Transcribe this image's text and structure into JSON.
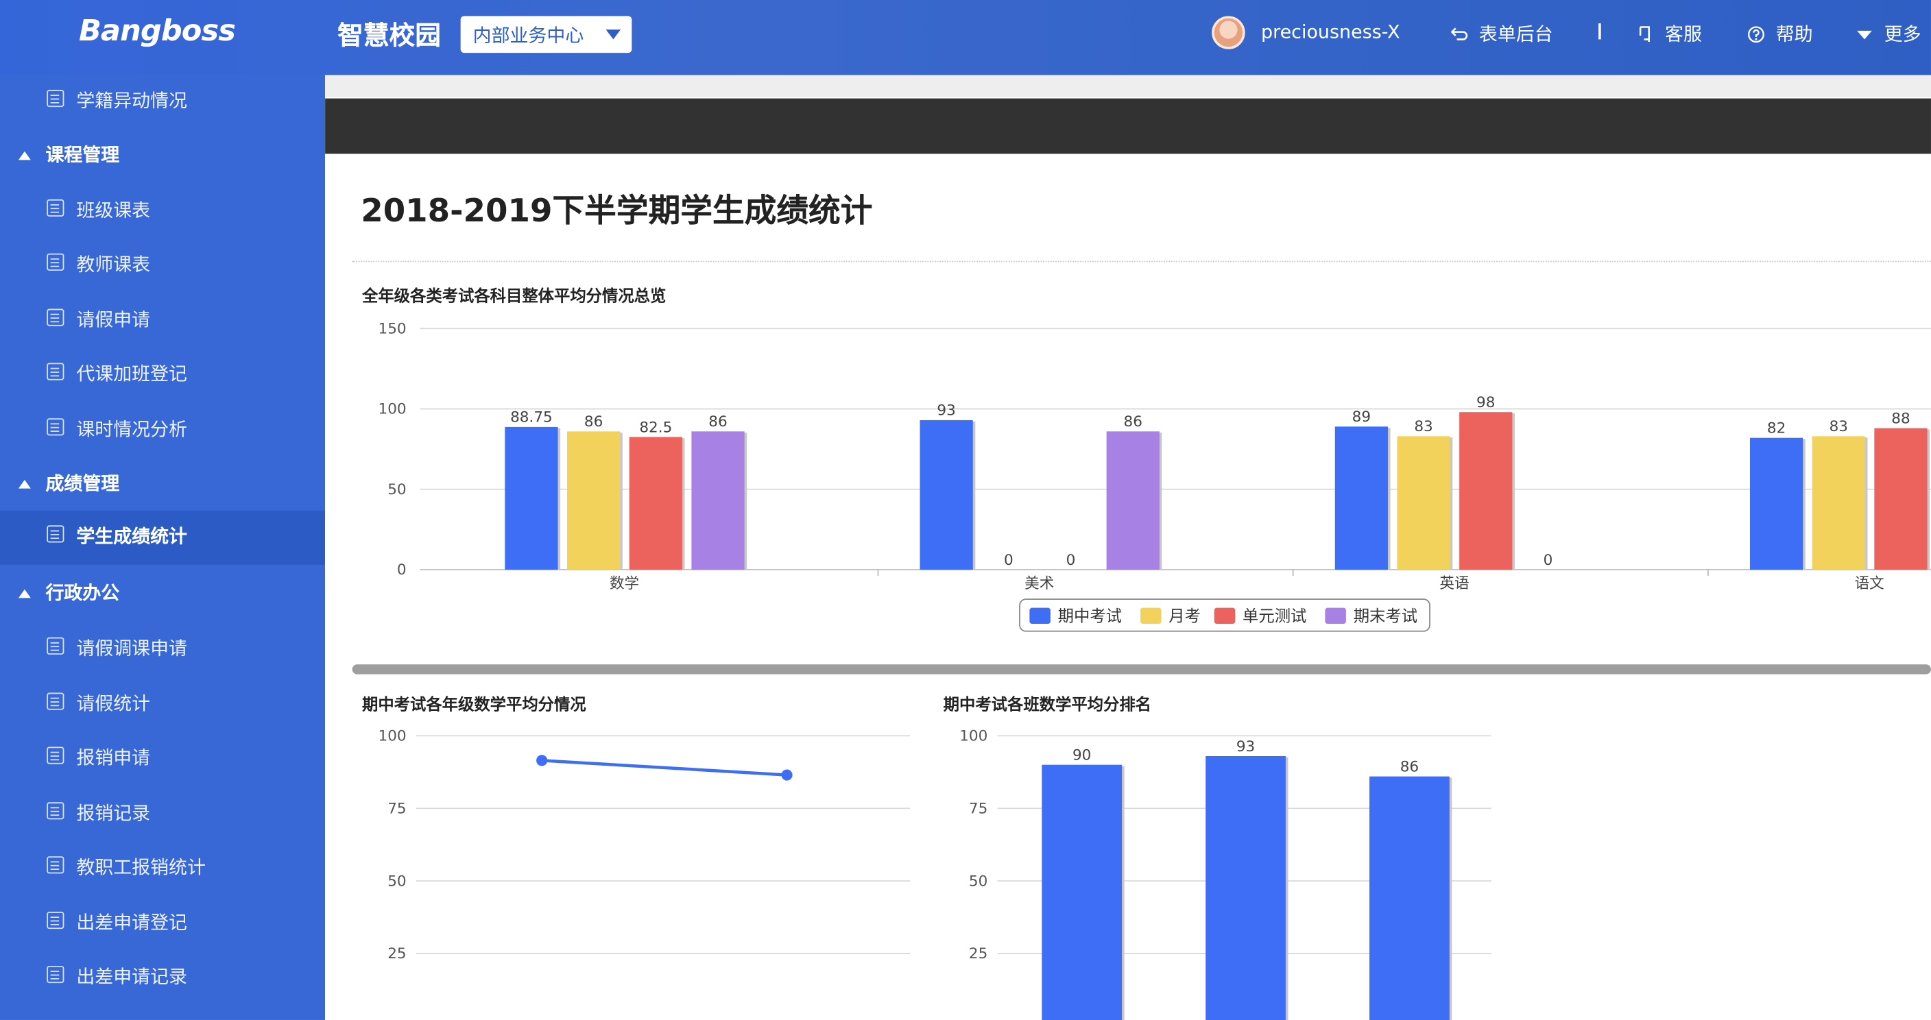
{
  "header": {
    "logo": "Bangboss",
    "app_title": "智慧校园",
    "dept_select": "内部业务中心",
    "username": "preciousness-X",
    "nav": [
      {
        "label": "表单后台",
        "icon": "return-icon"
      },
      {
        "label": "客服",
        "icon": "customer-service-icon"
      },
      {
        "label": "帮助",
        "icon": "help-icon"
      },
      {
        "label": "更多",
        "icon": "caret-down-icon"
      }
    ]
  },
  "sidebar": {
    "items": [
      {
        "type": "item",
        "label": "学籍异动情况",
        "icon": "person-card-icon"
      },
      {
        "type": "group",
        "label": "课程管理"
      },
      {
        "type": "item",
        "label": "班级课表",
        "icon": "calendar-icon"
      },
      {
        "type": "item",
        "label": "教师课表",
        "icon": "calendar-icon"
      },
      {
        "type": "item",
        "label": "请假申请",
        "icon": "printer-icon"
      },
      {
        "type": "item",
        "label": "代课加班登记",
        "icon": "form-icon"
      },
      {
        "type": "item",
        "label": "课时情况分析",
        "icon": "bar-chart-icon"
      },
      {
        "type": "group",
        "label": "成绩管理"
      },
      {
        "type": "item",
        "label": "学生成绩统计",
        "icon": "bar-chart-icon",
        "active": true
      },
      {
        "type": "group",
        "label": "行政办公"
      },
      {
        "type": "item",
        "label": "请假调课申请",
        "icon": "form-icon"
      },
      {
        "type": "item",
        "label": "请假统计",
        "icon": "bar-chart-icon"
      },
      {
        "type": "item",
        "label": "报销申请",
        "icon": "receipt-icon"
      },
      {
        "type": "item",
        "label": "报销记录",
        "icon": "calendar-icon"
      },
      {
        "type": "item",
        "label": "教职工报销统计",
        "icon": "bar-chart-icon"
      },
      {
        "type": "item",
        "label": "出差申请登记",
        "icon": "form-icon"
      },
      {
        "type": "item",
        "label": "出差申请记录",
        "icon": "bar-chart-icon"
      }
    ]
  },
  "main": {
    "page_title": "2018-2019下半学期学生成绩统计"
  },
  "colors": {
    "blue": "#3d6ef5",
    "yellow": "#f3d25b",
    "red": "#ec625c",
    "purple": "#a781e3"
  },
  "chart_data": [
    {
      "type": "bar",
      "title": "全年级各类考试各科目整体平均分情况总览",
      "categories": [
        "数学",
        "美术",
        "英语",
        "语文"
      ],
      "series": [
        {
          "name": "期中考试",
          "values": [
            88.75,
            93,
            89,
            82
          ]
        },
        {
          "name": "月考",
          "values": [
            86,
            0,
            83,
            83
          ]
        },
        {
          "name": "单元测试",
          "values": [
            82.5,
            0,
            98,
            88
          ]
        },
        {
          "name": "期末考试",
          "values": [
            86,
            86,
            0,
            null
          ]
        }
      ],
      "yticks": [
        0,
        50,
        100,
        150
      ],
      "ylim": [
        0,
        150
      ],
      "legend": "bottom"
    },
    {
      "type": "line",
      "title": "期中考试各年级数学平均分情况",
      "x": [
        "",
        ""
      ],
      "values": [
        91.5,
        86.5
      ],
      "yticks": [
        25,
        50,
        75,
        100
      ],
      "ylim": [
        0,
        100
      ]
    },
    {
      "type": "bar",
      "title": "期中考试各班数学平均分排名",
      "categories": [
        "",
        "",
        ""
      ],
      "values": [
        90,
        93,
        86
      ],
      "yticks": [
        25,
        50,
        75,
        100
      ],
      "ylim": [
        0,
        100
      ]
    }
  ]
}
